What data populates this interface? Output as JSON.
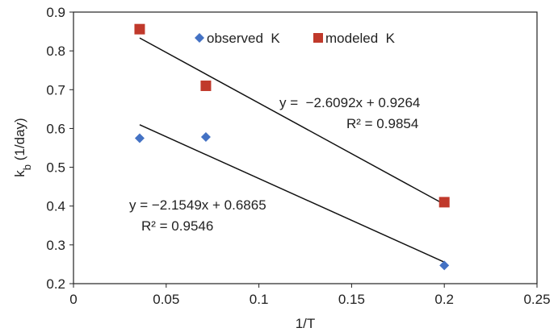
{
  "chart_data": {
    "type": "scatter",
    "xlabel": "1/T",
    "ylabel": {
      "main": "k",
      "sub": "b",
      "unit": " (1/day)"
    },
    "xlim": [
      0,
      0.25
    ],
    "ylim": [
      0.2,
      0.9
    ],
    "xticks": [
      "0",
      "0.05",
      "0.1",
      "0.15",
      "0.2",
      "0.25"
    ],
    "yticks": [
      "0.2",
      "0.3",
      "0.4",
      "0.5",
      "0.6",
      "0.7",
      "0.8",
      "0.9"
    ],
    "grid": false,
    "legend_position": "top",
    "series": [
      {
        "name": "observed  K",
        "marker": "diamond",
        "color": "#4472c4",
        "x": [
          0.0357,
          0.0714,
          0.2
        ],
        "y": [
          0.575,
          0.578,
          0.247
        ],
        "trendline": {
          "slope": -2.1549,
          "intercept": 0.6865,
          "from": 0.0357,
          "to": 0.2
        },
        "equation": "y = −2.1549x + 0.6865",
        "r2": "R² = 0.9546"
      },
      {
        "name": "modeled  K",
        "marker": "square",
        "color": "#c0392b",
        "x": [
          0.0357,
          0.0714,
          0.2
        ],
        "y": [
          0.856,
          0.71,
          0.41
        ],
        "trendline": {
          "slope": -2.6092,
          "intercept": 0.9264,
          "from": 0.0357,
          "to": 0.2
        },
        "equation": "y =  −2.6092x + 0.9264",
        "r2": "R² = 0.9854"
      }
    ]
  }
}
